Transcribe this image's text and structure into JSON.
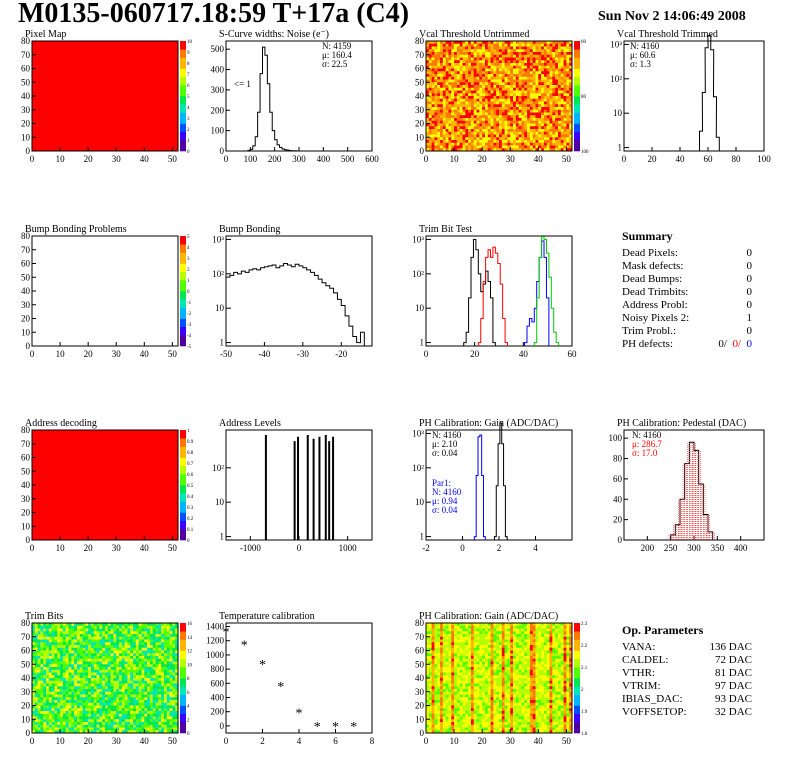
{
  "title": "M0135-060717.18:59 T+17a (C4)",
  "date": "Sun Nov  2 14:06:49 2008",
  "colors": {
    "red": "#ff0000",
    "blue": "#0000ff",
    "green": "#00cc00",
    "black": "#000000"
  },
  "chart_data": [
    {
      "id": "pixel_map",
      "type": "heatmap",
      "title": "Pixel Map",
      "xlim": [
        0,
        52
      ],
      "ylim": [
        0,
        80
      ],
      "xticks": [
        "0",
        "10",
        "20",
        "30",
        "40",
        "50"
      ],
      "yticks": [
        "0",
        "10",
        "20",
        "30",
        "40",
        "50",
        "60",
        "70",
        "80"
      ],
      "z_uniform": 10,
      "zticks": [
        "0",
        "1",
        "2",
        "3",
        "4",
        "5",
        "6",
        "7",
        "8",
        "9",
        "10"
      ]
    },
    {
      "id": "scurve",
      "type": "bar",
      "title": "S-Curve widths: Noise (e⁻)",
      "xlim": [
        0,
        600
      ],
      "ylim": [
        0,
        540
      ],
      "xticks": [
        "0",
        "100",
        "200",
        "300",
        "400",
        "500",
        "600"
      ],
      "yticks": [
        "0",
        "100",
        "200",
        "300",
        "400",
        "500"
      ],
      "x": [
        95,
        105,
        115,
        125,
        135,
        145,
        155,
        165,
        175,
        185,
        195,
        205,
        215,
        225,
        235,
        245,
        255,
        265,
        275,
        285
      ],
      "values": [
        3,
        8,
        25,
        70,
        190,
        380,
        510,
        470,
        330,
        190,
        100,
        55,
        30,
        18,
        10,
        6,
        4,
        2,
        1,
        1
      ],
      "stats": [
        "N: 4159",
        "μ: 160.4",
        "σ: 22.5"
      ],
      "annotation": "<= 1"
    },
    {
      "id": "vcal_untrimmed",
      "type": "heatmap",
      "title": "Vcal Threshold Untrimmed",
      "xlim": [
        0,
        52
      ],
      "ylim": [
        0,
        80
      ],
      "xticks": [
        "0",
        "10",
        "20",
        "30",
        "40",
        "50"
      ],
      "yticks": [
        "0",
        "10",
        "20",
        "30",
        "40",
        "50",
        "60",
        "70",
        "80"
      ],
      "zticks": [
        "100",
        "80",
        "60"
      ],
      "palette": "orange"
    },
    {
      "id": "vcal_trimmed",
      "type": "bar",
      "title": "Vcal Threshold Trimmed",
      "log_y": true,
      "xlim": [
        0,
        100
      ],
      "xticks": [
        "0",
        "20",
        "40",
        "60",
        "80",
        "100"
      ],
      "yticks": [
        "1",
        "10",
        "10²",
        "10³"
      ],
      "x": [
        55,
        57,
        59,
        61,
        63,
        65,
        67
      ],
      "values": [
        3,
        40,
        800,
        1800,
        700,
        30,
        2
      ],
      "stats": [
        "N: 4160",
        "μ: 60.6",
        "σ:  1.3"
      ]
    },
    {
      "id": "bump_problems",
      "type": "heatmap",
      "title": "Bump Bonding Problems",
      "xlim": [
        0,
        52
      ],
      "ylim": [
        0,
        80
      ],
      "xticks": [
        "0",
        "10",
        "20",
        "30",
        "40",
        "50"
      ],
      "yticks": [
        "0",
        "10",
        "20",
        "30",
        "40",
        "50",
        "60",
        "70",
        "80"
      ],
      "zticks": [
        "5",
        "4",
        "3",
        "2",
        "1",
        "0",
        "-1",
        "-2",
        "-3",
        "-4",
        "-5"
      ],
      "empty": true
    },
    {
      "id": "bump_bonding",
      "type": "bar",
      "title": "Bump Bonding",
      "log_y": true,
      "xlim": [
        -50,
        -12
      ],
      "xticks": [
        "-50",
        "-40",
        "-30",
        "-20"
      ],
      "yticks": [
        "1",
        "10",
        "10²",
        "10³"
      ],
      "x": [
        -49.5,
        -48.5,
        -47.5,
        -46.5,
        -45.5,
        -44.5,
        -43.5,
        -42.5,
        -41.5,
        -40.5,
        -39.5,
        -38.5,
        -37.5,
        -36.5,
        -35.5,
        -34.5,
        -33.5,
        -32.5,
        -31.5,
        -30.5,
        -29.5,
        -28.5,
        -27.5,
        -26.5,
        -25.5,
        -24.5,
        -23.5,
        -22.5,
        -21.5,
        -20.5,
        -19.5,
        -18.5,
        -17.5,
        -16.5,
        -15.5,
        -14.5
      ],
      "values": [
        80,
        90,
        110,
        100,
        120,
        110,
        130,
        140,
        130,
        150,
        160,
        170,
        180,
        150,
        170,
        200,
        180,
        160,
        190,
        170,
        150,
        130,
        110,
        90,
        70,
        55,
        45,
        38,
        28,
        18,
        12,
        6,
        3,
        1.5,
        1,
        2
      ]
    },
    {
      "id": "trim_bit_test",
      "type": "line",
      "title": "Trim Bit Test",
      "log_y": true,
      "xlim": [
        0,
        60
      ],
      "xticks": [
        "0",
        "20",
        "40",
        "60"
      ],
      "yticks": [
        "1",
        "10",
        "10²",
        "10³"
      ],
      "series": [
        {
          "color": "#000000",
          "x": [
            16,
            17,
            18,
            19,
            20,
            21,
            22,
            23,
            24,
            25,
            26,
            27,
            28
          ],
          "values": [
            1,
            2,
            20,
            300,
            1000,
            500,
            100,
            30,
            50,
            120,
            60,
            20,
            1
          ]
        },
        {
          "color": "#ff0000",
          "x": [
            22,
            23,
            24,
            25,
            26,
            27,
            28,
            29,
            30,
            31,
            32,
            33
          ],
          "values": [
            1,
            5,
            60,
            300,
            500,
            300,
            600,
            400,
            200,
            50,
            5,
            1
          ]
        },
        {
          "color": "#0000ff",
          "x": [
            41,
            42,
            43,
            44,
            45,
            46,
            47,
            48,
            49,
            50
          ],
          "values": [
            1,
            3,
            5,
            4,
            10,
            60,
            300,
            900,
            300,
            20
          ]
        },
        {
          "color": "#00cc00",
          "x": [
            45,
            46,
            47,
            48,
            49,
            50,
            51,
            52,
            53,
            54
          ],
          "values": [
            1,
            20,
            300,
            1200,
            1000,
            400,
            80,
            10,
            2,
            1
          ]
        }
      ]
    },
    {
      "id": "address_decoding",
      "type": "heatmap",
      "title": "Address decoding",
      "xlim": [
        0,
        52
      ],
      "ylim": [
        0,
        80
      ],
      "xticks": [
        "0",
        "10",
        "20",
        "30",
        "40",
        "50"
      ],
      "yticks": [
        "0",
        "10",
        "20",
        "30",
        "40",
        "50",
        "60",
        "70",
        "80"
      ],
      "z_uniform": 1,
      "zticks": [
        "0",
        "0.1",
        "0.2",
        "0.3",
        "0.4",
        "0.5",
        "0.6",
        "0.7",
        "0.8",
        "0.9",
        "1"
      ]
    },
    {
      "id": "address_levels",
      "type": "bar",
      "title": "Address Levels",
      "log_y": true,
      "xlim": [
        -1500,
        1500
      ],
      "xticks": [
        "-1000",
        "0",
        "1000"
      ],
      "yticks": [
        "1",
        "10",
        "10²"
      ],
      "x": [
        -680,
        -90,
        -20,
        180,
        300,
        420,
        550,
        620,
        700
      ],
      "values": [
        900,
        600,
        800,
        900,
        700,
        800,
        900,
        600,
        800
      ]
    },
    {
      "id": "ph_gain",
      "type": "bar",
      "title": "PH Calibration: Gain (ADC/DAC)",
      "log_y": true,
      "xlim": [
        -2,
        6
      ],
      "xticks": [
        "-2",
        "0",
        "2",
        "4"
      ],
      "yticks": [
        "1",
        "10",
        "10²",
        "10³"
      ],
      "series": [
        {
          "color": "#000000",
          "x": [
            1.8,
            1.9,
            2.0,
            2.1,
            2.2,
            2.3,
            2.4
          ],
          "values": [
            1,
            30,
            500,
            2000,
            500,
            30,
            1
          ]
        },
        {
          "color": "#0000ff",
          "x": [
            0.7,
            0.8,
            0.9,
            1.0,
            1.1,
            1.2
          ],
          "values": [
            1,
            60,
            800,
            900,
            60,
            1
          ]
        }
      ],
      "stats": [
        "N: 4160",
        "μ: 2.10",
        "σ: 0.04"
      ],
      "stats2": [
        "Par1:",
        "N: 4160",
        "μ: 0.94",
        "σ: 0.04"
      ]
    },
    {
      "id": "ph_pedestal",
      "type": "bar",
      "title": "PH Calibration: Pedestal (DAC)",
      "xlim": [
        150,
        450
      ],
      "ylim": [
        0,
        108
      ],
      "xticks": [
        "200",
        "250",
        "300",
        "350",
        "400"
      ],
      "yticks": [
        "0",
        "20",
        "40",
        "60",
        "80",
        "100"
      ],
      "x": [
        255,
        265,
        275,
        285,
        295,
        305,
        315,
        325,
        335
      ],
      "values": [
        5,
        15,
        40,
        75,
        96,
        88,
        55,
        25,
        8
      ],
      "stats": [
        "N: 4160",
        "μ: 286.7",
        "σ: 17.0"
      ]
    },
    {
      "id": "trim_bits",
      "type": "heatmap",
      "title": "Trim Bits",
      "xlim": [
        0,
        52
      ],
      "ylim": [
        0,
        80
      ],
      "xticks": [
        "0",
        "10",
        "20",
        "30",
        "40",
        "50"
      ],
      "yticks": [
        "0",
        "10",
        "20",
        "30",
        "40",
        "50",
        "60",
        "70",
        "80"
      ],
      "zticks": [
        "0",
        "2",
        "4",
        "6",
        "8",
        "10",
        "12",
        "14",
        "16"
      ],
      "palette": "green"
    },
    {
      "id": "temperature",
      "type": "scatter",
      "title": "Temperature calibration",
      "xlim": [
        0,
        8
      ],
      "ylim": [
        -100,
        1450
      ],
      "xticks": [
        "0",
        "2",
        "4",
        "6",
        "8"
      ],
      "yticks": [
        "0",
        "200",
        "400",
        "600",
        "800",
        "1000",
        "1200",
        "1400"
      ],
      "x": [
        0,
        1,
        2,
        3,
        4,
        5,
        6,
        7
      ],
      "values": [
        1330,
        1150,
        870,
        560,
        190,
        0,
        0,
        0
      ]
    },
    {
      "id": "ph_gain_map",
      "type": "heatmap",
      "title": "PH Calibration: Gain (ADC/DAC)",
      "xlim": [
        0,
        52
      ],
      "ylim": [
        0,
        80
      ],
      "xticks": [
        "0",
        "10",
        "20",
        "30",
        "40",
        "50"
      ],
      "yticks": [
        "0",
        "10",
        "20",
        "30",
        "40",
        "50",
        "60",
        "70",
        "80"
      ],
      "zticks": [
        "2.3",
        "2.2",
        "2.1",
        "2",
        "1.9",
        "1.8"
      ],
      "palette": "yellow"
    }
  ],
  "summary": {
    "title": "Summary",
    "rows": [
      {
        "label": "Dead Pixels:",
        "value": "0"
      },
      {
        "label": "Mask defects:",
        "value": "0"
      },
      {
        "label": "Dead Bumps:",
        "value": "0"
      },
      {
        "label": "Dead Trimbits:",
        "value": "0"
      },
      {
        "label": "Address Probl:",
        "value": "0"
      },
      {
        "label": "Noisy Pixels 2:",
        "value": "1"
      },
      {
        "label": "Trim Probl.:",
        "value": "0"
      }
    ],
    "ph_label": "PH defects:",
    "ph_values": [
      "0/",
      "0/",
      "0"
    ]
  },
  "op_params": {
    "title": "Op. Parameters",
    "rows": [
      {
        "label": "VANA:",
        "value": "136 DAC"
      },
      {
        "label": "CALDEL:",
        "value": "72 DAC"
      },
      {
        "label": "VTHR:",
        "value": "81 DAC"
      },
      {
        "label": "VTRIM:",
        "value": "97 DAC"
      },
      {
        "label": "IBIAS_DAC:",
        "value": "93 DAC"
      },
      {
        "label": "VOFFSETOP:",
        "value": "32 DAC"
      }
    ]
  }
}
